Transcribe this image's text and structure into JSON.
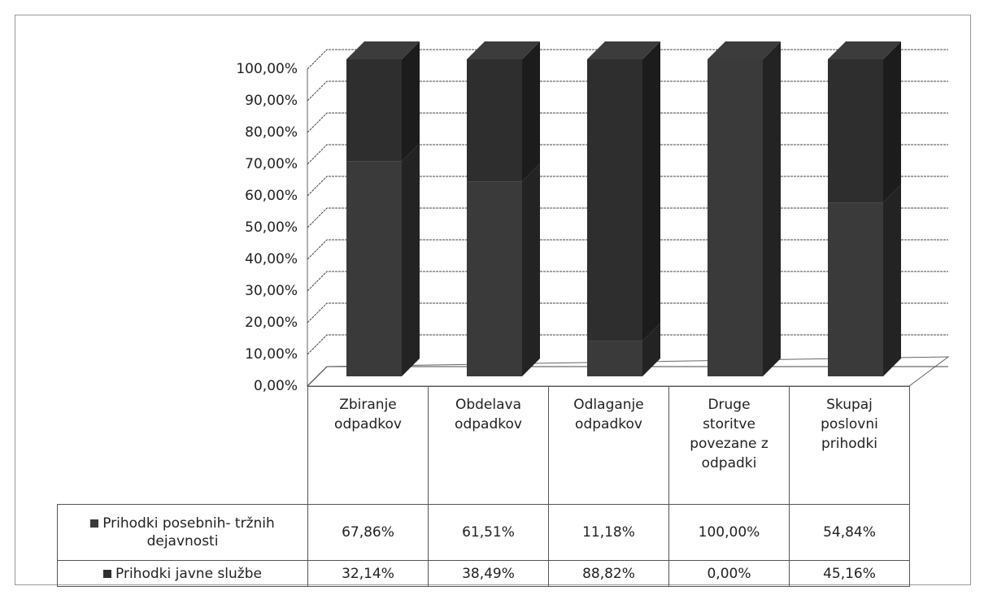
{
  "chart_data": {
    "type": "bar",
    "stacked": true,
    "categories": [
      "Zbiranje odpadkov",
      "Obdelava odpadkov",
      "Odlaganje odpadkov",
      "Druge storitve povezane z odpadki",
      "Skupaj poslovni prihodki"
    ],
    "series": [
      {
        "name": "Prihodki posebnih- tržnih dejavnosti",
        "color": "#3a3a3a",
        "values": [
          67.86,
          61.51,
          11.18,
          100,
          54.84
        ],
        "value_labels": [
          "67,86%",
          "61,51%",
          "11,18%",
          "100,00%",
          "54,84%"
        ]
      },
      {
        "name": "Prihodki javne službe",
        "color": "#2e2e2e",
        "values": [
          32.14,
          38.49,
          88.82,
          0,
          45.16
        ],
        "value_labels": [
          "32,14%",
          "38,49%",
          "88,82%",
          "0,00%",
          "45,16%"
        ]
      }
    ],
    "ylim": [
      0,
      100
    ],
    "yticks": [
      {
        "value": 0,
        "label": "0,00%"
      },
      {
        "value": 10,
        "label": "10,00%"
      },
      {
        "value": 20,
        "label": "20,00%"
      },
      {
        "value": 30,
        "label": "30,00%"
      },
      {
        "value": 40,
        "label": "40,00%"
      },
      {
        "value": 50,
        "label": "50,00%"
      },
      {
        "value": 60,
        "label": "60,00%"
      },
      {
        "value": 70,
        "label": "70,00%"
      },
      {
        "value": 80,
        "label": "80,00%"
      },
      {
        "value": 90,
        "label": "90,00%"
      },
      {
        "value": 100,
        "label": "100,00%"
      }
    ],
    "grid": true
  }
}
